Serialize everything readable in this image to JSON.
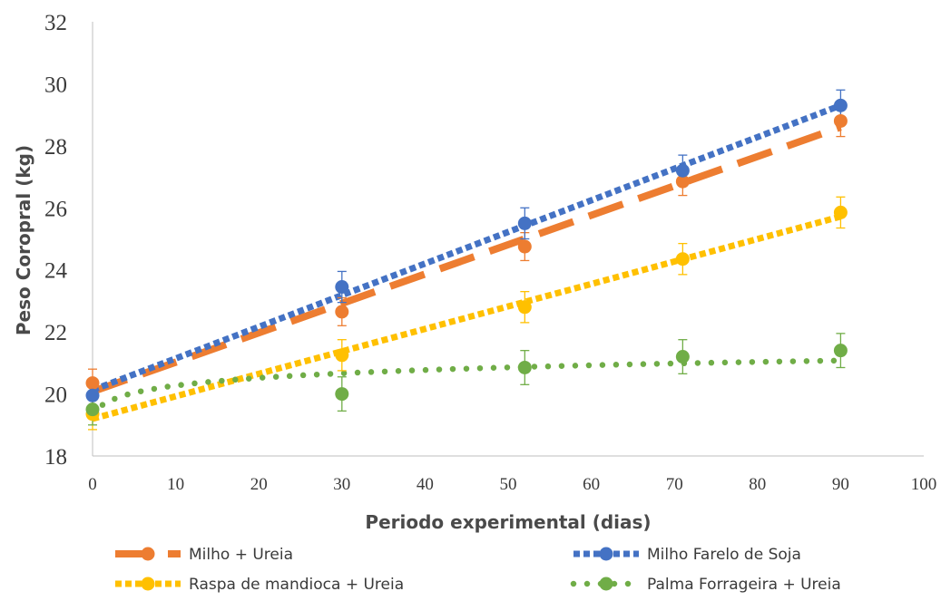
{
  "chart_data": {
    "type": "scatter",
    "title": "",
    "xlabel": "Periodo experimental (dias)",
    "ylabel": "Peso Coropral (kg)",
    "xlim": [
      0,
      100
    ],
    "ylim": [
      18,
      32
    ],
    "xticks": [
      0,
      10,
      20,
      30,
      40,
      50,
      60,
      70,
      80,
      90,
      100
    ],
    "yticks": [
      18,
      20,
      22,
      24,
      26,
      28,
      30,
      32
    ],
    "grid": false,
    "legend_position": "bottom",
    "x": [
      0,
      30,
      52,
      71,
      90
    ],
    "series": [
      {
        "name": "Milho + Ureia",
        "color": "#ED7D31",
        "trendline": "linear",
        "line_style": "long-dash",
        "values": [
          20.35,
          22.65,
          24.75,
          26.85,
          28.8
        ],
        "error": [
          0.45,
          0.45,
          0.45,
          0.45,
          0.5
        ]
      },
      {
        "name": "Milho Farelo de Soja",
        "color": "#4472C4",
        "trendline": "linear",
        "line_style": "dotted",
        "values": [
          19.95,
          23.45,
          25.5,
          27.2,
          29.3
        ],
        "error": [
          0.5,
          0.5,
          0.5,
          0.5,
          0.5
        ]
      },
      {
        "name": "Raspa de mandioca + Ureia",
        "color": "#FFC000",
        "trendline": "linear",
        "line_style": "dotted",
        "values": [
          19.35,
          21.25,
          22.8,
          24.35,
          25.85
        ],
        "error": [
          0.5,
          0.5,
          0.5,
          0.5,
          0.5
        ]
      },
      {
        "name": "Palma Forrageira  + Ureia",
        "color": "#70AD47",
        "trendline": "logarithmic",
        "line_style": "round-dot",
        "values": [
          19.5,
          20.0,
          20.85,
          21.2,
          21.4
        ],
        "error": [
          0.5,
          0.55,
          0.55,
          0.55,
          0.55
        ]
      }
    ]
  }
}
